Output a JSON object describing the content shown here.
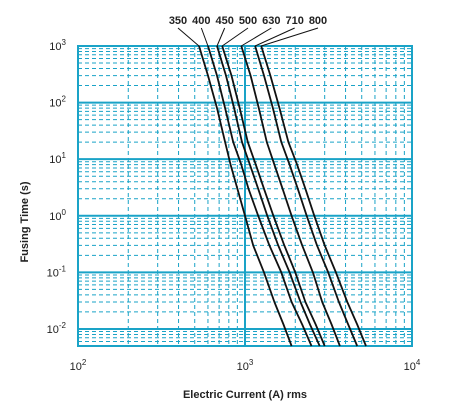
{
  "chart_data": {
    "type": "line",
    "title": "",
    "xlabel": "Electric Current (A) rms",
    "ylabel": "Fusing Time (s)",
    "xscale": "log",
    "yscale": "log",
    "xlim": [
      100,
      10000
    ],
    "ylim": [
      0.005,
      1000
    ],
    "grid": true,
    "x_ticks": [
      {
        "value": 100,
        "base": "10",
        "exp": "2"
      },
      {
        "value": 1000,
        "base": "10",
        "exp": "3"
      },
      {
        "value": 10000,
        "base": "10",
        "exp": "4"
      }
    ],
    "y_ticks": [
      {
        "value": 1000,
        "base": "10",
        "exp": "3"
      },
      {
        "value": 100,
        "base": "10",
        "exp": "2"
      },
      {
        "value": 10,
        "base": "10",
        "exp": "1"
      },
      {
        "value": 1,
        "base": "10",
        "exp": "0"
      },
      {
        "value": 0.1,
        "base": "10",
        "exp": "-1"
      },
      {
        "value": 0.01,
        "base": "10",
        "exp": "-2"
      }
    ],
    "series": [
      {
        "name": "350",
        "x": [
          530,
          600,
          680,
          760,
          820,
          900,
          1000,
          1120,
          1300,
          1500,
          1700,
          1900
        ],
        "y": [
          1000,
          300,
          80,
          20,
          8,
          3,
          1,
          0.3,
          0.1,
          0.03,
          0.012,
          0.005
        ]
      },
      {
        "name": "400",
        "x": [
          600,
          680,
          760,
          850,
          950,
          1050,
          1200,
          1400,
          1650,
          1900,
          2200,
          2500
        ],
        "y": [
          1000,
          300,
          80,
          20,
          8,
          3,
          1,
          0.3,
          0.1,
          0.03,
          0.012,
          0.005
        ]
      },
      {
        "name": "450",
        "x": [
          680,
          770,
          860,
          960,
          1070,
          1200,
          1360,
          1580,
          1850,
          2150,
          2450,
          2800
        ],
        "y": [
          1000,
          300,
          80,
          20,
          8,
          3,
          1,
          0.3,
          0.1,
          0.03,
          0.012,
          0.005
        ]
      },
      {
        "name": "500",
        "x": [
          730,
          830,
          930,
          1040,
          1160,
          1300,
          1480,
          1720,
          2000,
          2300,
          2650,
          3000
        ],
        "y": [
          1000,
          300,
          80,
          20,
          8,
          3,
          1,
          0.3,
          0.1,
          0.03,
          0.012,
          0.005
        ]
      },
      {
        "name": "630",
        "x": [
          950,
          1080,
          1210,
          1350,
          1500,
          1680,
          1900,
          2200,
          2550,
          2900,
          3300,
          3700
        ],
        "y": [
          1000,
          300,
          80,
          20,
          8,
          3,
          1,
          0.3,
          0.1,
          0.03,
          0.012,
          0.005
        ]
      },
      {
        "name": "710",
        "x": [
          1150,
          1300,
          1470,
          1650,
          1850,
          2070,
          2340,
          2700,
          3150,
          3650,
          4150,
          4700
        ],
        "y": [
          1000,
          300,
          80,
          20,
          8,
          3,
          1,
          0.3,
          0.1,
          0.03,
          0.012,
          0.005
        ]
      },
      {
        "name": "800",
        "x": [
          1250,
          1420,
          1610,
          1820,
          2050,
          2300,
          2600,
          3000,
          3500,
          4100,
          4700,
          5300
        ],
        "y": [
          1000,
          300,
          80,
          20,
          8,
          3,
          1,
          0.3,
          0.1,
          0.03,
          0.012,
          0.005
        ]
      }
    ],
    "colors": {
      "grid": "#1aa3c7",
      "curve": "#111111",
      "text": "#222222"
    }
  }
}
